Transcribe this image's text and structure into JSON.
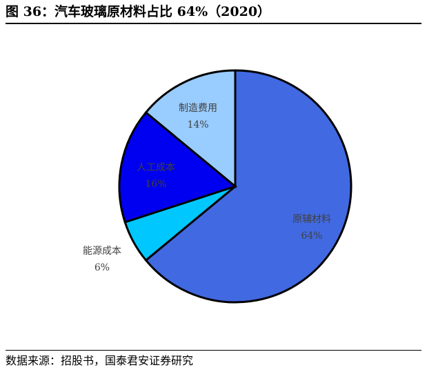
{
  "title": "图 36：汽车玻璃原材料占比 64%（2020）",
  "source": "数据来源：招股书，国泰君安证券研究",
  "chart_data": {
    "type": "pie",
    "title": "汽车玻璃原材料占比 64%（2020）",
    "slices": [
      {
        "label": "原辅材料",
        "value": 64,
        "value_label": "64%",
        "color": "#4169e1"
      },
      {
        "label": "能源成本",
        "value": 6,
        "value_label": "6%",
        "color": "#00c8ff"
      },
      {
        "label": "人工成本",
        "value": 16,
        "value_label": "16%",
        "color": "#0000f0"
      },
      {
        "label": "制造费用",
        "value": 14,
        "value_label": "14%",
        "color": "#99ccff"
      }
    ],
    "start": "12 o'clock",
    "direction": "clockwise",
    "legend": "none"
  }
}
